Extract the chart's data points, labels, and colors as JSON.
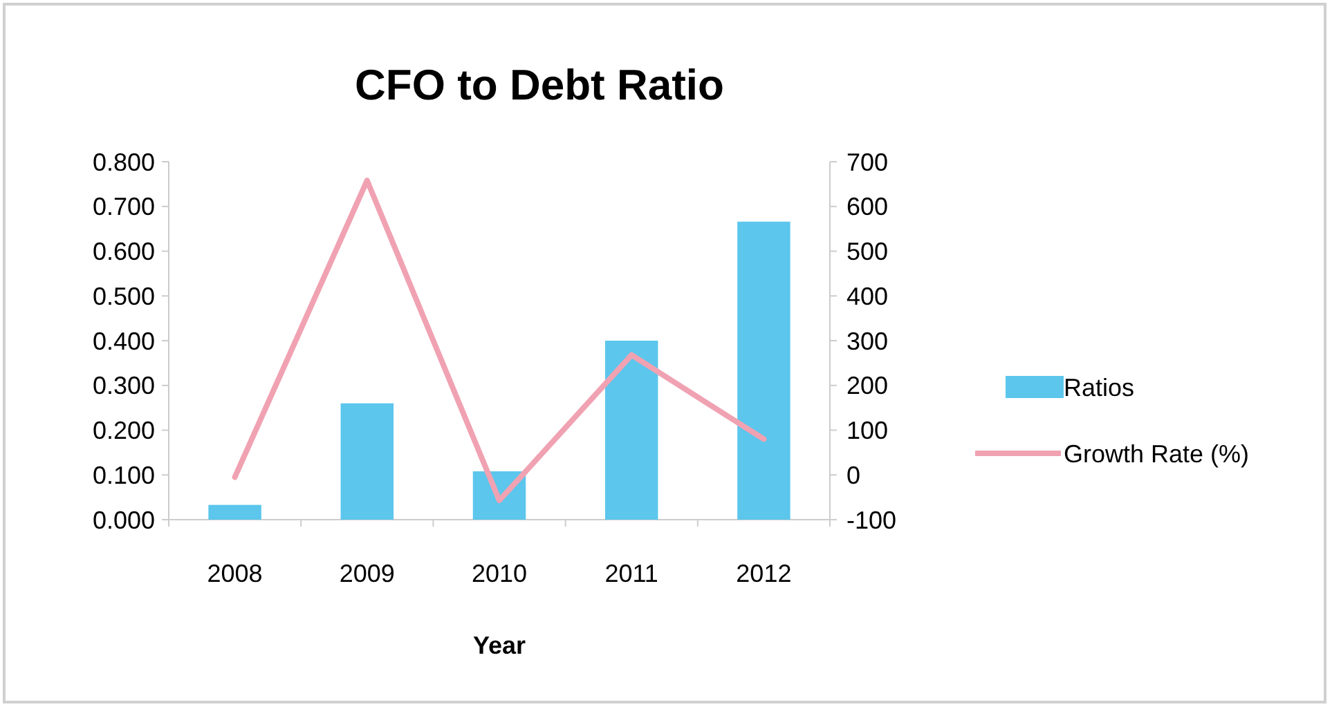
{
  "chart_data": {
    "type": "bar",
    "title": "CFO to Debt Ratio",
    "xlabel": "Year",
    "categories": [
      "2008",
      "2009",
      "2010",
      "2011",
      "2012"
    ],
    "series": [
      {
        "name": "Ratios",
        "color": "#5cc6ec",
        "values": [
          0.033,
          0.26,
          0.108,
          0.4,
          0.666
        ]
      },
      {
        "name": "Growth Rate (%)",
        "type": "line",
        "axis": "y2",
        "color": "#f0a2b2",
        "values": [
          -5,
          658,
          -57,
          268,
          80
        ]
      }
    ],
    "ylim": [
      0,
      0.8
    ],
    "yticks": [
      {
        "value": 0,
        "label": "0.000"
      },
      {
        "value": 0.1,
        "label": "0.100"
      },
      {
        "value": 0.2,
        "label": "0.200"
      },
      {
        "value": 0.3,
        "label": "0.300"
      },
      {
        "value": 0.4,
        "label": "0.400"
      },
      {
        "value": 0.5,
        "label": "0.500"
      },
      {
        "value": 0.6,
        "label": "0.600"
      },
      {
        "value": 0.7,
        "label": "0.700"
      },
      {
        "value": 0.8,
        "label": "0.800"
      }
    ],
    "y2lim": [
      -100,
      700
    ],
    "y2ticks": [
      -100,
      0,
      100,
      200,
      300,
      400,
      500,
      600,
      700
    ],
    "legend": "right",
    "grid": false
  }
}
